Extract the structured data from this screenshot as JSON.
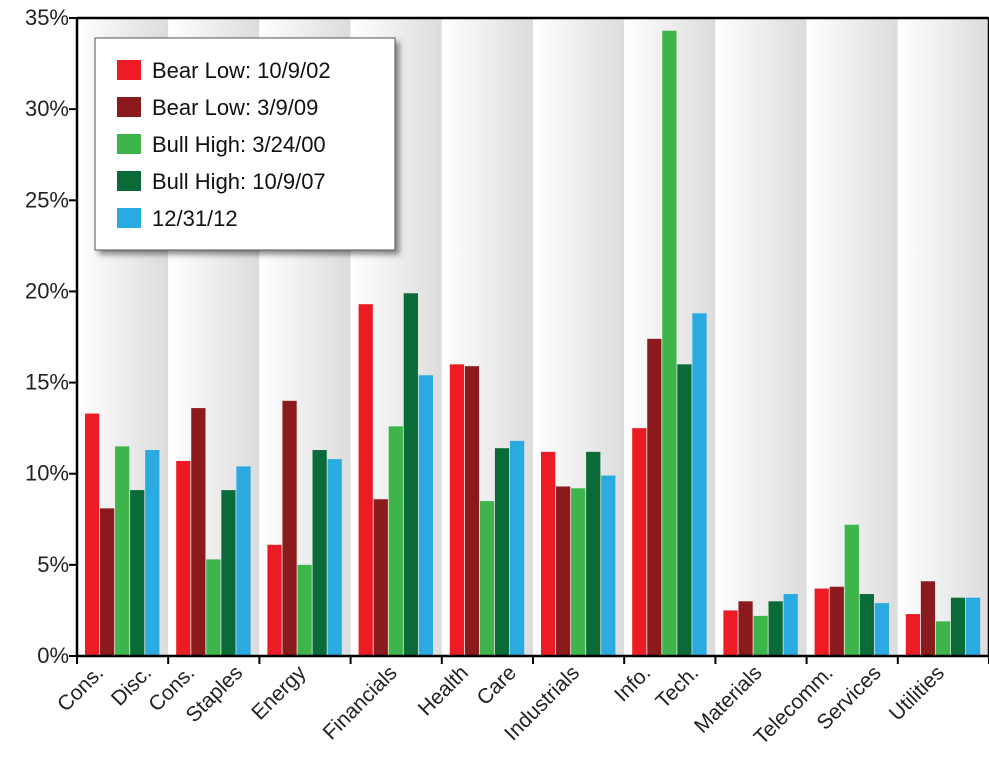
{
  "chart_data": {
    "type": "bar",
    "categories": [
      [
        "Cons.",
        "Disc."
      ],
      [
        "Cons.",
        "Staples"
      ],
      [
        "Energy"
      ],
      [
        "Financials"
      ],
      [
        "Health",
        "Care"
      ],
      [
        "Industrials"
      ],
      [
        "Info.",
        "Tech."
      ],
      [
        "Materials"
      ],
      [
        "Telecomm.",
        "Services"
      ],
      [
        "Utilities"
      ]
    ],
    "series": [
      {
        "name": "Bear Low: 10/9/02",
        "color": "#ed1c24",
        "values": [
          13.3,
          10.7,
          6.1,
          19.3,
          16.0,
          11.2,
          12.5,
          2.5,
          3.7,
          2.3
        ]
      },
      {
        "name": "Bear Low: 3/9/09",
        "color": "#8b1a1d",
        "values": [
          8.1,
          13.6,
          14.0,
          8.6,
          15.9,
          9.3,
          17.4,
          3.0,
          3.8,
          4.1
        ]
      },
      {
        "name": "Bull High: 3/24/00",
        "color": "#3db54a",
        "values": [
          11.5,
          5.3,
          5.0,
          12.6,
          8.5,
          9.2,
          34.3,
          2.2,
          7.2,
          1.9
        ]
      },
      {
        "name": "Bull High: 10/9/07",
        "color": "#0b6b38",
        "values": [
          9.1,
          9.1,
          11.3,
          19.9,
          11.4,
          11.2,
          16.0,
          3.0,
          3.4,
          3.2
        ]
      },
      {
        "name": "12/31/12",
        "color": "#29aae1",
        "values": [
          11.3,
          10.4,
          10.8,
          15.4,
          11.8,
          9.9,
          18.8,
          3.4,
          2.9,
          3.2
        ]
      }
    ],
    "yticks": [
      "0%",
      "5%",
      "10%",
      "15%",
      "20%",
      "25%",
      "30%",
      "35%"
    ],
    "ylim": [
      0,
      35
    ],
    "grid": false,
    "legend_position": "top-left"
  }
}
